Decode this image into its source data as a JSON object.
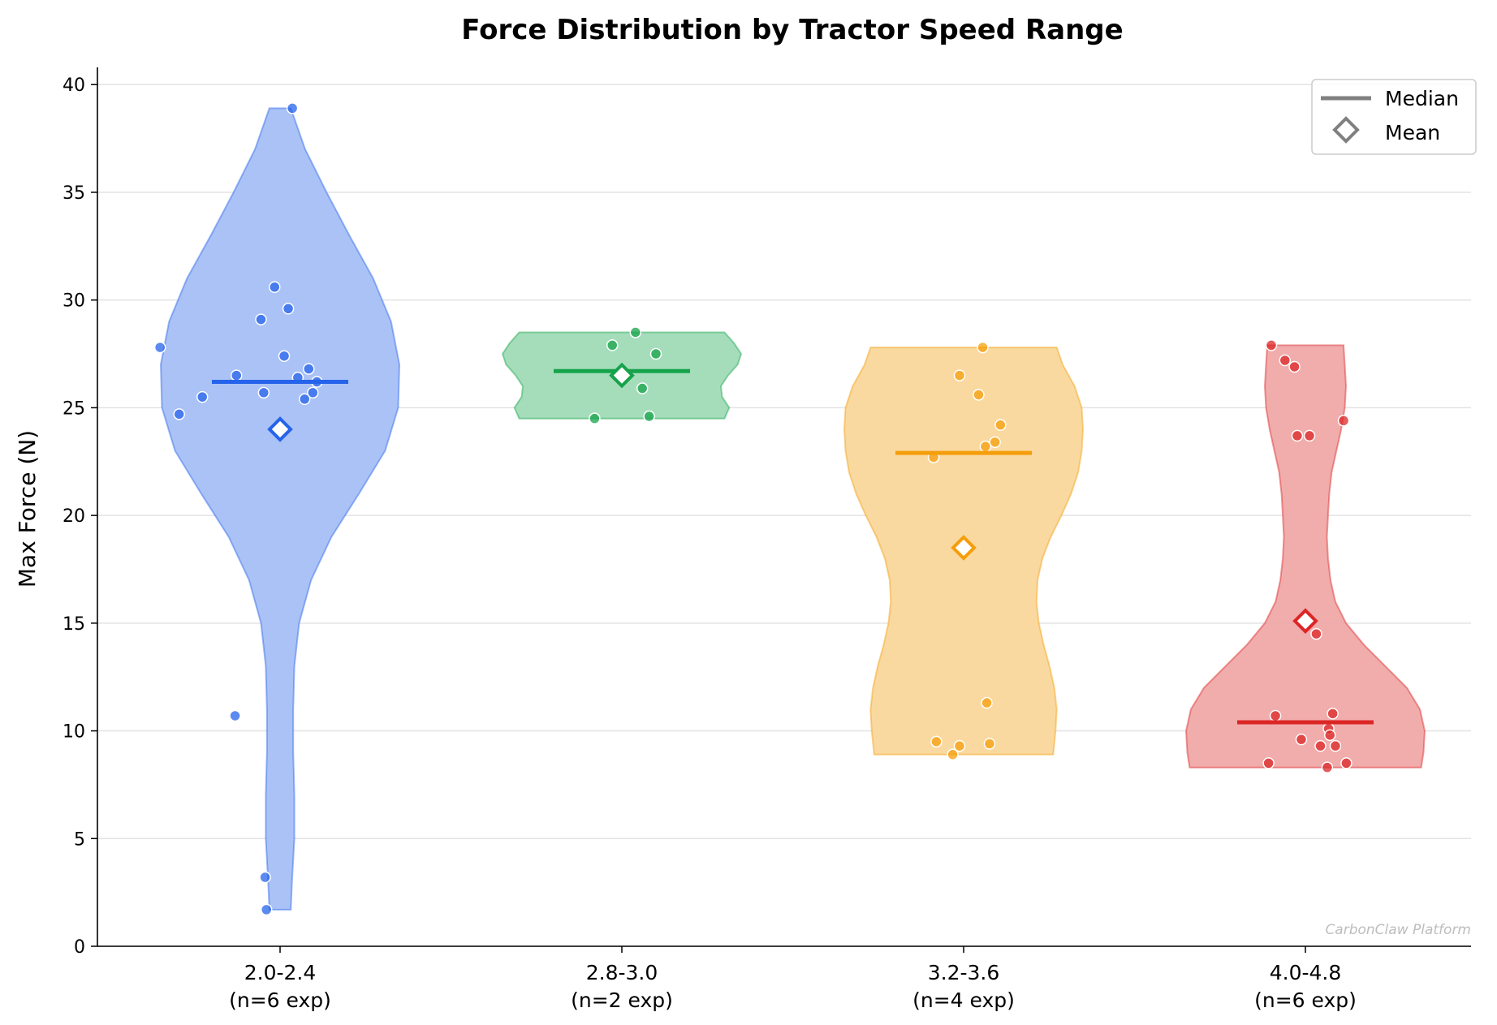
{
  "chart_data": {
    "type": "violin",
    "title": "Force Distribution by Tractor Speed Range",
    "xlabel": "",
    "ylabel": "Max Force (N)",
    "ylim": [
      0,
      40.8
    ],
    "yticks": [
      0,
      5,
      10,
      15,
      20,
      25,
      30,
      35,
      40
    ],
    "grid": "horizontal",
    "legend": {
      "position": "top-right",
      "entries": [
        {
          "label": "Median",
          "marker": "line"
        },
        {
          "label": "Mean",
          "marker": "diamond"
        }
      ]
    },
    "watermark": "CarbonClaw Platform",
    "groups": [
      {
        "category": "2.0-2.4",
        "n_label": "(n=6 exp)",
        "color": "#2563eb",
        "fill": "#a7bff5",
        "median": 26.2,
        "mean": 24.0,
        "min": 1.7,
        "max": 38.9,
        "density": [
          [
            1.7,
            0.09
          ],
          [
            3,
            0.1
          ],
          [
            5,
            0.12
          ],
          [
            7,
            0.12
          ],
          [
            9,
            0.11
          ],
          [
            11,
            0.11
          ],
          [
            13,
            0.12
          ],
          [
            15,
            0.16
          ],
          [
            17,
            0.26
          ],
          [
            19,
            0.43
          ],
          [
            21,
            0.66
          ],
          [
            23,
            0.88
          ],
          [
            25,
            0.99
          ],
          [
            27,
            1.0
          ],
          [
            29,
            0.93
          ],
          [
            31,
            0.78
          ],
          [
            33,
            0.58
          ],
          [
            35,
            0.39
          ],
          [
            37,
            0.21
          ],
          [
            38.9,
            0.09
          ]
        ],
        "points": [
          {
            "x": -0.1,
            "y": 1.7
          },
          {
            "x": -0.33,
            "y": 10.7
          },
          {
            "x": -0.11,
            "y": 3.2
          },
          {
            "x": 0.09,
            "y": 38.9
          },
          {
            "x": -0.04,
            "y": 30.6
          },
          {
            "x": 0.06,
            "y": 29.6
          },
          {
            "x": -0.14,
            "y": 29.1
          },
          {
            "x": -0.88,
            "y": 27.8
          },
          {
            "x": 0.03,
            "y": 27.4
          },
          {
            "x": 0.21,
            "y": 26.8
          },
          {
            "x": -0.32,
            "y": 26.5
          },
          {
            "x": 0.13,
            "y": 26.4
          },
          {
            "x": 0.27,
            "y": 26.2
          },
          {
            "x": 0.24,
            "y": 25.7
          },
          {
            "x": -0.12,
            "y": 25.7
          },
          {
            "x": -0.57,
            "y": 25.5
          },
          {
            "x": 0.18,
            "y": 25.4
          },
          {
            "x": -0.74,
            "y": 24.7
          }
        ]
      },
      {
        "category": "2.8-3.0",
        "n_label": "(n=2 exp)",
        "color": "#16a34a",
        "fill": "#a0dbb7",
        "median": 26.7,
        "mean": 26.5,
        "min": 24.5,
        "max": 28.5,
        "density": [
          [
            24.5,
            0.86
          ],
          [
            25.0,
            0.9
          ],
          [
            25.5,
            0.84
          ],
          [
            26.0,
            0.83
          ],
          [
            26.5,
            0.89
          ],
          [
            27.0,
            0.97
          ],
          [
            27.5,
            1.0
          ],
          [
            28.0,
            0.94
          ],
          [
            28.5,
            0.86
          ]
        ],
        "points": [
          {
            "x": 0.1,
            "y": 28.5
          },
          {
            "x": -0.07,
            "y": 27.9
          },
          {
            "x": 0.25,
            "y": 27.5
          },
          {
            "x": 0.15,
            "y": 25.9
          },
          {
            "x": -0.2,
            "y": 24.5
          },
          {
            "x": 0.2,
            "y": 24.6
          }
        ]
      },
      {
        "category": "3.2-3.6",
        "n_label": "(n=4 exp)",
        "color": "#f59e0b",
        "fill": "#fad79b",
        "median": 22.9,
        "mean": 18.5,
        "min": 8.9,
        "max": 27.8,
        "density": [
          [
            8.9,
            0.75
          ],
          [
            10,
            0.77
          ],
          [
            11,
            0.78
          ],
          [
            12,
            0.76
          ],
          [
            13,
            0.72
          ],
          [
            14,
            0.67
          ],
          [
            15,
            0.63
          ],
          [
            16,
            0.61
          ],
          [
            17,
            0.62
          ],
          [
            18,
            0.66
          ],
          [
            19,
            0.73
          ],
          [
            20,
            0.82
          ],
          [
            21,
            0.9
          ],
          [
            22,
            0.96
          ],
          [
            23,
            0.99
          ],
          [
            24,
            1.0
          ],
          [
            25,
            0.99
          ],
          [
            26,
            0.93
          ],
          [
            27,
            0.83
          ],
          [
            27.8,
            0.78
          ]
        ],
        "points": [
          {
            "x": 0.14,
            "y": 27.8
          },
          {
            "x": -0.03,
            "y": 26.5
          },
          {
            "x": 0.11,
            "y": 25.6
          },
          {
            "x": 0.27,
            "y": 24.2
          },
          {
            "x": 0.23,
            "y": 23.4
          },
          {
            "x": 0.16,
            "y": 23.2
          },
          {
            "x": -0.22,
            "y": 22.7
          },
          {
            "x": 0.17,
            "y": 11.3
          },
          {
            "x": -0.2,
            "y": 9.5
          },
          {
            "x": -0.03,
            "y": 9.3
          },
          {
            "x": 0.19,
            "y": 9.4
          },
          {
            "x": -0.08,
            "y": 8.9
          }
        ]
      },
      {
        "category": "4.0-4.8",
        "n_label": "(n=6 exp)",
        "color": "#dc2626",
        "fill": "#f0a8a8",
        "median": 10.4,
        "mean": 15.1,
        "min": 8.3,
        "max": 27.9,
        "density": [
          [
            8.3,
            0.97
          ],
          [
            9,
            0.99
          ],
          [
            10,
            1.0
          ],
          [
            11,
            0.96
          ],
          [
            12,
            0.85
          ],
          [
            13,
            0.67
          ],
          [
            14,
            0.49
          ],
          [
            15,
            0.34
          ],
          [
            16,
            0.25
          ],
          [
            17,
            0.21
          ],
          [
            18,
            0.19
          ],
          [
            19,
            0.18
          ],
          [
            20,
            0.19
          ],
          [
            21,
            0.2
          ],
          [
            22,
            0.22
          ],
          [
            23,
            0.26
          ],
          [
            24,
            0.3
          ],
          [
            25,
            0.33
          ],
          [
            26,
            0.34
          ],
          [
            27,
            0.33
          ],
          [
            27.9,
            0.32
          ]
        ],
        "points": [
          {
            "x": -0.25,
            "y": 27.9
          },
          {
            "x": -0.15,
            "y": 27.2
          },
          {
            "x": -0.08,
            "y": 26.9
          },
          {
            "x": 0.28,
            "y": 24.4
          },
          {
            "x": -0.06,
            "y": 23.7
          },
          {
            "x": 0.03,
            "y": 23.7
          },
          {
            "x": 0.08,
            "y": 14.5
          },
          {
            "x": -0.22,
            "y": 10.7
          },
          {
            "x": 0.2,
            "y": 10.8
          },
          {
            "x": 0.17,
            "y": 10.1
          },
          {
            "x": 0.18,
            "y": 9.8
          },
          {
            "x": -0.03,
            "y": 9.6
          },
          {
            "x": 0.11,
            "y": 9.3
          },
          {
            "x": 0.22,
            "y": 9.3
          },
          {
            "x": -0.27,
            "y": 8.5
          },
          {
            "x": 0.3,
            "y": 8.5
          },
          {
            "x": 0.16,
            "y": 8.3
          }
        ]
      }
    ]
  }
}
